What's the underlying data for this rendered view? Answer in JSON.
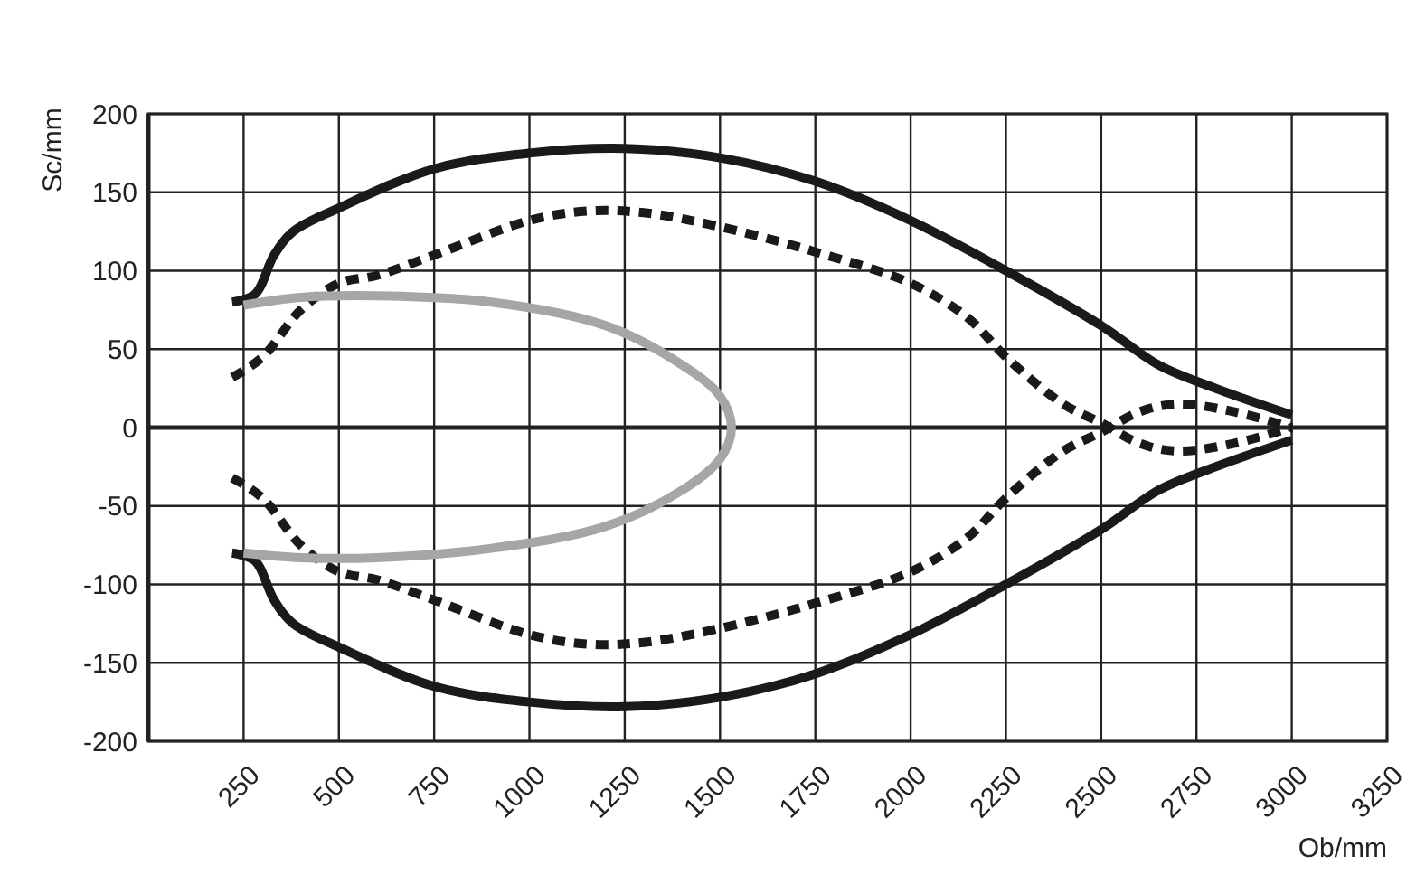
{
  "chart_data": {
    "type": "line",
    "xlabel": "Ob/mm",
    "ylabel": "Sc/mm",
    "xlim": [
      0,
      3250
    ],
    "ylim": [
      -200,
      200
    ],
    "xticks": [
      250,
      500,
      750,
      1000,
      1250,
      1500,
      1750,
      2000,
      2250,
      2500,
      2750,
      3000,
      3250
    ],
    "yticks": [
      -200,
      -150,
      -100,
      -50,
      0,
      50,
      100,
      150,
      200
    ],
    "grid": true,
    "marker": "none",
    "series": [
      {
        "color": "#1a1a1a",
        "line_style": "solid",
        "x": [
          220,
          280,
          330,
          380,
          500,
          750,
          1000,
          1250,
          1500,
          1750,
          2000,
          2250,
          2500,
          2650,
          2800,
          3000
        ],
        "values": [
          80,
          85,
          110,
          125,
          140,
          165,
          175,
          178,
          172,
          157,
          132,
          100,
          65,
          40,
          25,
          8
        ]
      },
      {
        "color": "#1a1a1a",
        "line_style": "solid",
        "x": [
          220,
          280,
          330,
          380,
          500,
          750,
          1000,
          1250,
          1500,
          1750,
          2000,
          2250,
          2500,
          2650,
          2800,
          3000
        ],
        "values": [
          -80,
          -85,
          -110,
          -125,
          -140,
          -165,
          -175,
          -178,
          -172,
          -157,
          -132,
          -100,
          -65,
          -40,
          -25,
          -8
        ]
      },
      {
        "color": "#1a1a1a",
        "line_style": "dashed",
        "x": [
          220,
          300,
          400,
          500,
          600,
          750,
          1000,
          1150,
          1300,
          1500,
          1750,
          2000,
          2150,
          2250,
          2400,
          2500,
          2600,
          2700,
          2850,
          3000
        ],
        "values": [
          32,
          45,
          75,
          92,
          97,
          110,
          132,
          138,
          137,
          128,
          112,
          92,
          70,
          45,
          15,
          3,
          -10,
          -15,
          -10,
          0
        ]
      },
      {
        "color": "#1a1a1a",
        "line_style": "dashed",
        "x": [
          220,
          300,
          400,
          500,
          600,
          750,
          1000,
          1150,
          1300,
          1500,
          1750,
          2000,
          2150,
          2250,
          2400,
          2500,
          2600,
          2700,
          2850,
          3000
        ],
        "values": [
          -32,
          -45,
          -75,
          -92,
          -97,
          -110,
          -132,
          -138,
          -137,
          -128,
          -112,
          -92,
          -70,
          -45,
          -15,
          -3,
          10,
          15,
          10,
          0
        ]
      },
      {
        "color": "#a6a6a6",
        "line_style": "solid",
        "x": [
          250,
          400,
          600,
          900,
          1200,
          1400,
          1500,
          1530,
          1500,
          1400,
          1200,
          900,
          600,
          400,
          250
        ],
        "values": [
          78,
          83,
          84,
          80,
          65,
          40,
          20,
          0,
          -20,
          -40,
          -63,
          -77,
          -83,
          -83,
          -80
        ]
      }
    ]
  }
}
